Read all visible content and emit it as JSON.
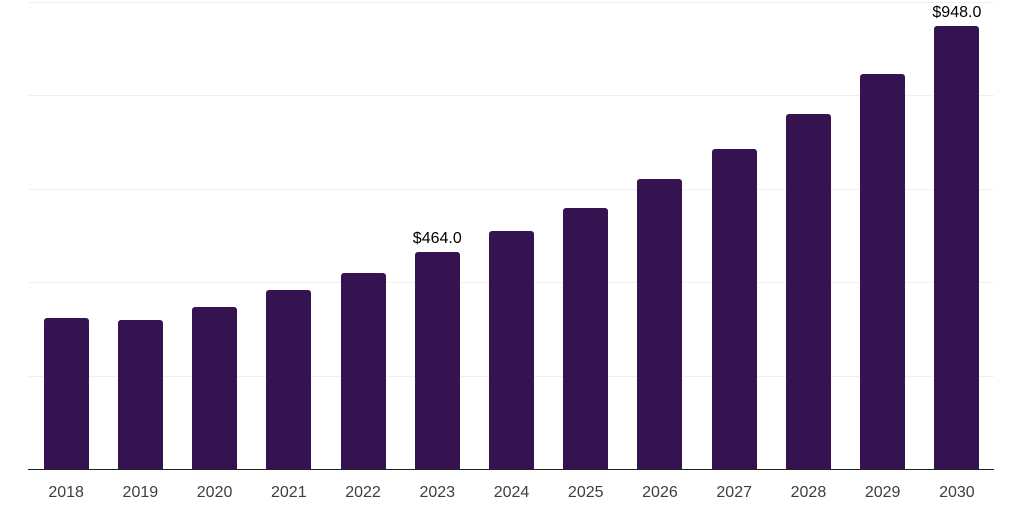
{
  "chart_data": {
    "type": "bar",
    "title": "",
    "xlabel": "",
    "ylabel": "",
    "categories": [
      "2018",
      "2019",
      "2020",
      "2021",
      "2022",
      "2023",
      "2024",
      "2025",
      "2026",
      "2027",
      "2028",
      "2029",
      "2030"
    ],
    "values": [
      323,
      320,
      347,
      383,
      419,
      464,
      509,
      559,
      621,
      685,
      761,
      846,
      948
    ],
    "point_labels": [
      "",
      "",
      "",
      "",
      "",
      "$464.0",
      "",
      "",
      "",
      "",
      "",
      "",
      "$948.0"
    ],
    "ylim": [
      0,
      1000
    ],
    "gridline_values": [
      200,
      400,
      600,
      800,
      1000
    ],
    "grid": "horizontal",
    "legend": "none",
    "y_tick_labels": "none"
  },
  "style": {
    "bar_color": "#351250",
    "grid_color": "#f0f0f0",
    "axis_line_color": "#222222",
    "x_tick_label_color": "#3d3d3d",
    "value_label_color": "#000000",
    "background_color": "#ffffff"
  }
}
